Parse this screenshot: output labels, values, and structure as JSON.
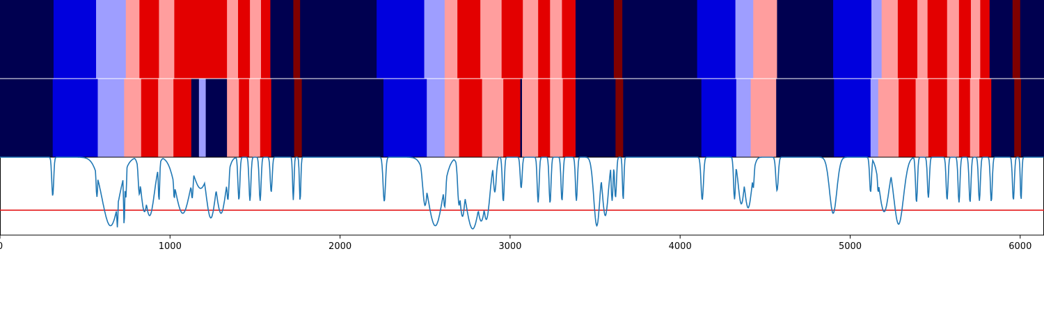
{
  "chart_data": {
    "type": "heatmap",
    "title": "",
    "xlabel": "",
    "ylabel": "",
    "xlim": [
      0,
      6140
    ],
    "xticks": [
      0,
      1000,
      2000,
      3000,
      4000,
      5000,
      6000
    ],
    "xtick_labels": [
      "0",
      "1000",
      "2000",
      "3000",
      "4000",
      "5000",
      "6000"
    ],
    "colors": {
      "0": "#000050",
      "1": "#0000dd",
      "2": "#9e9eff",
      "3": "#ff9e9e",
      "4": "#e30000",
      "5": "#7f0000",
      "signal": "#1f77b4",
      "threshold": "#e41a1c"
    },
    "tracks": [
      {
        "segments": [
          [
            0,
            315,
            0
          ],
          [
            315,
            565,
            1
          ],
          [
            565,
            740,
            2
          ],
          [
            740,
            820,
            3
          ],
          [
            820,
            935,
            4
          ],
          [
            935,
            1025,
            3
          ],
          [
            1025,
            1335,
            4
          ],
          [
            1335,
            1400,
            3
          ],
          [
            1400,
            1470,
            4
          ],
          [
            1470,
            1535,
            3
          ],
          [
            1535,
            1590,
            4
          ],
          [
            1590,
            1725,
            0
          ],
          [
            1725,
            1765,
            5
          ],
          [
            1765,
            2215,
            0
          ],
          [
            2215,
            2495,
            1
          ],
          [
            2495,
            2615,
            2
          ],
          [
            2615,
            2690,
            3
          ],
          [
            2690,
            2825,
            4
          ],
          [
            2825,
            2950,
            3
          ],
          [
            2950,
            3075,
            4
          ],
          [
            3075,
            3165,
            3
          ],
          [
            3165,
            3235,
            4
          ],
          [
            3235,
            3305,
            3
          ],
          [
            3305,
            3385,
            4
          ],
          [
            3385,
            3610,
            0
          ],
          [
            3610,
            3660,
            5
          ],
          [
            3660,
            4100,
            0
          ],
          [
            4100,
            4325,
            1
          ],
          [
            4325,
            4430,
            2
          ],
          [
            4430,
            4570,
            3
          ],
          [
            4570,
            4900,
            0
          ],
          [
            4900,
            5125,
            1
          ],
          [
            5125,
            5185,
            2
          ],
          [
            5185,
            5280,
            3
          ],
          [
            5280,
            5395,
            4
          ],
          [
            5395,
            5455,
            3
          ],
          [
            5455,
            5570,
            4
          ],
          [
            5570,
            5640,
            3
          ],
          [
            5640,
            5710,
            4
          ],
          [
            5710,
            5765,
            3
          ],
          [
            5765,
            5820,
            4
          ],
          [
            5820,
            5955,
            0
          ],
          [
            5955,
            6000,
            5
          ],
          [
            6000,
            6140,
            0
          ]
        ]
      },
      {
        "segments": [
          [
            0,
            310,
            0
          ],
          [
            310,
            575,
            1
          ],
          [
            575,
            730,
            2
          ],
          [
            730,
            830,
            3
          ],
          [
            830,
            930,
            4
          ],
          [
            930,
            1020,
            3
          ],
          [
            1020,
            1125,
            4
          ],
          [
            1125,
            1170,
            0
          ],
          [
            1170,
            1210,
            2
          ],
          [
            1210,
            1335,
            0
          ],
          [
            1335,
            1405,
            3
          ],
          [
            1405,
            1465,
            4
          ],
          [
            1465,
            1530,
            3
          ],
          [
            1530,
            1595,
            4
          ],
          [
            1595,
            1730,
            0
          ],
          [
            1730,
            1775,
            5
          ],
          [
            1775,
            2255,
            0
          ],
          [
            2255,
            2510,
            1
          ],
          [
            2510,
            2615,
            2
          ],
          [
            2615,
            2700,
            3
          ],
          [
            2700,
            2835,
            4
          ],
          [
            2835,
            2960,
            3
          ],
          [
            2960,
            3060,
            4
          ],
          [
            3060,
            3070,
            0
          ],
          [
            3070,
            3165,
            3
          ],
          [
            3165,
            3235,
            4
          ],
          [
            3235,
            3310,
            3
          ],
          [
            3310,
            3385,
            4
          ],
          [
            3385,
            3620,
            0
          ],
          [
            3620,
            3665,
            5
          ],
          [
            3665,
            4125,
            0
          ],
          [
            4125,
            4330,
            1
          ],
          [
            4330,
            4415,
            2
          ],
          [
            4415,
            4565,
            3
          ],
          [
            4565,
            4905,
            0
          ],
          [
            4905,
            5120,
            1
          ],
          [
            5120,
            5165,
            2
          ],
          [
            5165,
            5285,
            3
          ],
          [
            5285,
            5385,
            4
          ],
          [
            5385,
            5460,
            3
          ],
          [
            5460,
            5570,
            4
          ],
          [
            5570,
            5640,
            3
          ],
          [
            5640,
            5705,
            4
          ],
          [
            5705,
            5760,
            3
          ],
          [
            5760,
            5830,
            4
          ],
          [
            5830,
            5965,
            0
          ],
          [
            5965,
            6005,
            5
          ],
          [
            6005,
            6140,
            0
          ]
        ]
      }
    ],
    "signal": {
      "ylim": [
        0,
        1
      ],
      "baseline": 1.0,
      "threshold": 0.32,
      "dips": [
        [
          310,
          0.5,
          8
        ],
        [
          570,
          0.49,
          8
        ],
        [
          650,
          0.12,
          70
        ],
        [
          690,
          0.1,
          8
        ],
        [
          730,
          0.13,
          6
        ],
        [
          740,
          0.47,
          6
        ],
        [
          820,
          0.52,
          10
        ],
        [
          850,
          0.3,
          30
        ],
        [
          880,
          0.25,
          40
        ],
        [
          935,
          0.44,
          6
        ],
        [
          1025,
          0.47,
          8
        ],
        [
          1075,
          0.28,
          60
        ],
        [
          1110,
          0.5,
          10
        ],
        [
          1130,
          0.47,
          10
        ],
        [
          1180,
          0.6,
          55
        ],
        [
          1240,
          0.22,
          40
        ],
        [
          1300,
          0.28,
          40
        ],
        [
          1340,
          0.45,
          10
        ],
        [
          1405,
          0.45,
          8
        ],
        [
          1470,
          0.44,
          8
        ],
        [
          1530,
          0.44,
          8
        ],
        [
          1595,
          0.55,
          8
        ],
        [
          1725,
          0.45,
          6
        ],
        [
          1765,
          0.44,
          6
        ],
        [
          2260,
          0.43,
          10
        ],
        [
          2500,
          0.38,
          20
        ],
        [
          2560,
          0.12,
          60
        ],
        [
          2615,
          0.36,
          12
        ],
        [
          2700,
          0.38,
          12
        ],
        [
          2720,
          0.24,
          25
        ],
        [
          2780,
          0.08,
          60
        ],
        [
          2830,
          0.18,
          40
        ],
        [
          2860,
          0.2,
          30
        ],
        [
          2910,
          0.55,
          12
        ],
        [
          2960,
          0.43,
          8
        ],
        [
          3065,
          0.6,
          8
        ],
        [
          3165,
          0.42,
          8
        ],
        [
          3235,
          0.41,
          8
        ],
        [
          3305,
          0.44,
          8
        ],
        [
          3390,
          0.44,
          8
        ],
        [
          3510,
          0.12,
          25
        ],
        [
          3560,
          0.25,
          25
        ],
        [
          3600,
          0.44,
          8
        ],
        [
          3620,
          0.48,
          8
        ],
        [
          3665,
          0.45,
          6
        ],
        [
          4130,
          0.45,
          10
        ],
        [
          4320,
          0.46,
          8
        ],
        [
          4360,
          0.4,
          25
        ],
        [
          4400,
          0.35,
          30
        ],
        [
          4430,
          0.6,
          8
        ],
        [
          4570,
          0.57,
          10
        ],
        [
          4900,
          0.28,
          30
        ],
        [
          5120,
          0.55,
          8
        ],
        [
          5165,
          0.55,
          8
        ],
        [
          5200,
          0.3,
          40
        ],
        [
          5285,
          0.14,
          40
        ],
        [
          5390,
          0.42,
          8
        ],
        [
          5460,
          0.48,
          8
        ],
        [
          5570,
          0.45,
          8
        ],
        [
          5640,
          0.42,
          8
        ],
        [
          5705,
          0.42,
          8
        ],
        [
          5760,
          0.44,
          8
        ],
        [
          5830,
          0.43,
          8
        ],
        [
          5960,
          0.45,
          8
        ],
        [
          6005,
          0.45,
          6
        ]
      ]
    }
  }
}
